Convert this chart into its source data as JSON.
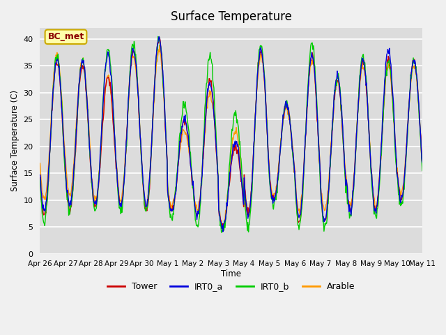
{
  "title": "Surface Temperature",
  "ylabel": "Surface Temperature (C)",
  "xlabel": "Time",
  "ylim": [
    0,
    42
  ],
  "yticks": [
    0,
    5,
    10,
    15,
    20,
    25,
    30,
    35,
    40
  ],
  "annotation": "BC_met",
  "colors": {
    "Tower": "#cc0000",
    "IRT0_a": "#0000dd",
    "IRT0_b": "#00cc00",
    "Arable": "#ff9900"
  },
  "background_color": "#dcdcdc",
  "grid_color": "#ffffff",
  "fig_bg": "#f0f0f0",
  "xtick_labels": [
    "Apr 26",
    "Apr 27",
    "Apr 28",
    "Apr 29",
    "Apr 30",
    "May 1",
    "May 2",
    "May 3",
    "May 4",
    "May 5",
    "May 6",
    "May 7",
    "May 8",
    "May 9",
    "May 10",
    "May 11"
  ],
  "legend_labels": [
    "Tower",
    "IRT0_a",
    "IRT0_b",
    "Arable"
  ]
}
